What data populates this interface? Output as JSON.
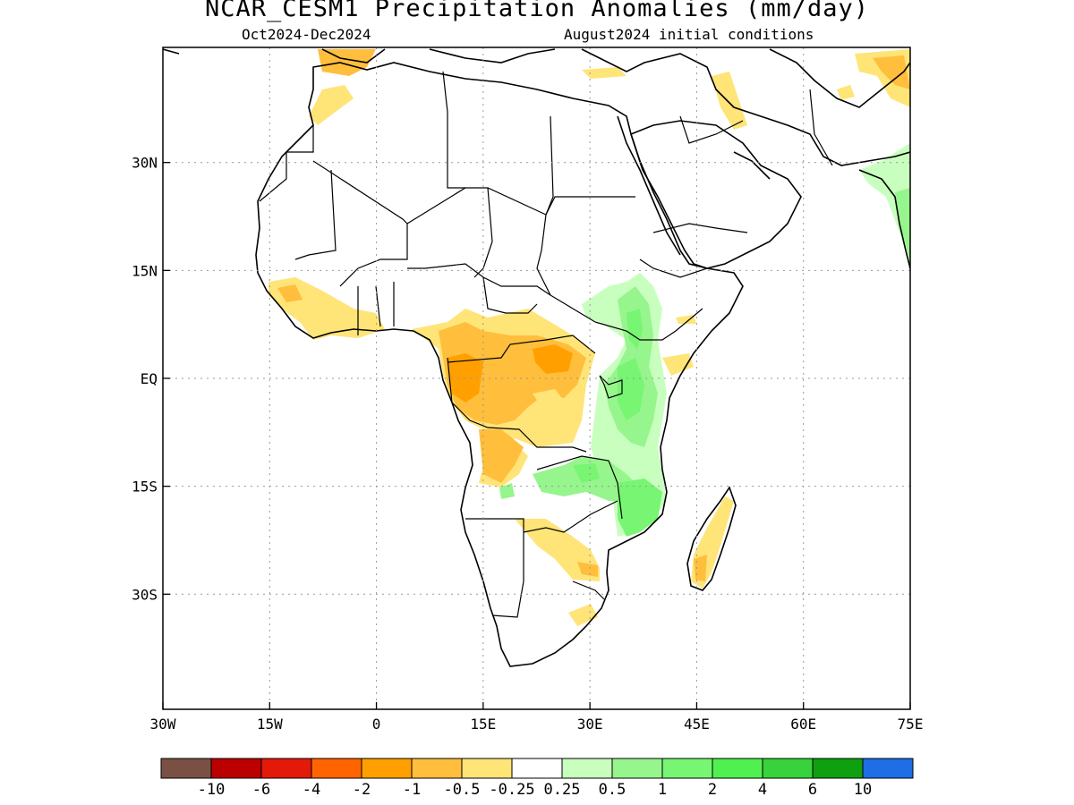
{
  "title": "NCAR_CESM1 Precipitation Anomalies (mm/day)",
  "subtitle_left": "Oct2024-Dec2024",
  "subtitle_right": "August2024 initial conditions",
  "map": {
    "region": "Africa",
    "lon_range": [
      -30,
      75
    ],
    "lat_range": [
      -46,
      46
    ],
    "grid": true,
    "lon_ticks": [
      {
        "value": -30,
        "label": "30W"
      },
      {
        "value": -15,
        "label": "15W"
      },
      {
        "value": 0,
        "label": "0"
      },
      {
        "value": 15,
        "label": "15E"
      },
      {
        "value": 30,
        "label": "30E"
      },
      {
        "value": 45,
        "label": "45E"
      },
      {
        "value": 60,
        "label": "60E"
      },
      {
        "value": 75,
        "label": "75E"
      }
    ],
    "lat_ticks": [
      {
        "value": 30,
        "label": "30N"
      },
      {
        "value": 15,
        "label": "15N"
      },
      {
        "value": 0,
        "label": "EQ"
      },
      {
        "value": -15,
        "label": "15S"
      },
      {
        "value": -30,
        "label": "30S"
      }
    ]
  },
  "colorbar": {
    "colors": [
      "#7b5044",
      "#bb0000",
      "#e31a0a",
      "#ff6400",
      "#ffa000",
      "#ffbe3c",
      "#ffe478",
      "#ffffff",
      "#c8ffbe",
      "#96f58c",
      "#78f573",
      "#50f050",
      "#37d23c",
      "#0fa00f",
      "#1e6ee6"
    ],
    "labels": [
      "-10",
      "-6",
      "-4",
      "-2",
      "-1",
      "-0.5",
      "-0.25",
      "0.25",
      "0.5",
      "1",
      "2",
      "4",
      "6",
      "10"
    ]
  },
  "anomaly_regions": [
    {
      "name": "west-africa-coast",
      "category": "-0.5",
      "color": "#ffe478"
    },
    {
      "name": "congo-basin",
      "category": "-1",
      "color": "#ffbe3c"
    },
    {
      "name": "congo-core",
      "category": "-2",
      "color": "#ffa000"
    },
    {
      "name": "angola",
      "category": "-0.5",
      "color": "#ffe478"
    },
    {
      "name": "zambia-zimbabwe",
      "category": "-0.5",
      "color": "#ffe478"
    },
    {
      "name": "madagascar",
      "category": "-0.5",
      "color": "#ffe478"
    },
    {
      "name": "east-africa",
      "category": "0.5",
      "color": "#96f58c"
    },
    {
      "name": "lake-victoria",
      "category": "1",
      "color": "#78f573"
    },
    {
      "name": "mozambique",
      "category": "0.5",
      "color": "#96f58c"
    },
    {
      "name": "morocco",
      "category": "-0.5",
      "color": "#ffe478"
    },
    {
      "name": "iran-pakistan",
      "category": "-0.5",
      "color": "#ffe478"
    },
    {
      "name": "india-west",
      "category": "0.5",
      "color": "#96f58c"
    }
  ]
}
